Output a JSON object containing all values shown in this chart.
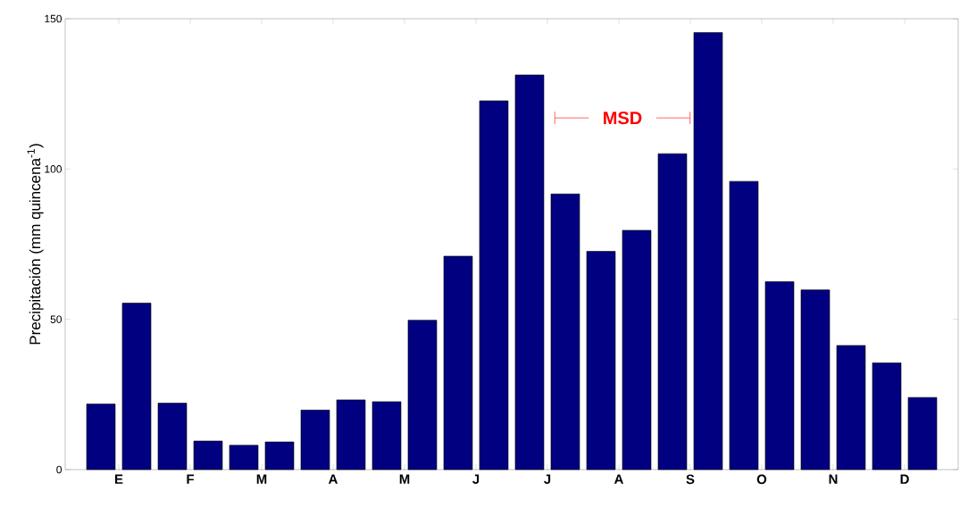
{
  "chart_data": {
    "type": "bar",
    "ylabel": "Precipitación (mm quincena$^{-1}$)",
    "categories": [
      "E",
      null,
      "F",
      null,
      "M",
      null,
      "A",
      null,
      "M",
      null,
      "J",
      null,
      "J",
      null,
      "A",
      null,
      "S",
      null,
      "O",
      null,
      "N",
      null,
      "D",
      null
    ],
    "values": [
      21.8,
      55.4,
      22.1,
      9.5,
      8.1,
      9.2,
      19.8,
      23.2,
      22.6,
      49.7,
      71.0,
      122.7,
      131.3,
      91.7,
      72.6,
      79.6,
      105.1,
      145.4,
      95.9,
      62.5,
      59.8,
      41.3,
      35.5,
      24.0
    ],
    "color": "#000080",
    "ylim": [
      0,
      150
    ],
    "yticks": [
      0,
      50,
      100,
      150
    ],
    "annotations": [
      "MSD"
    ]
  }
}
